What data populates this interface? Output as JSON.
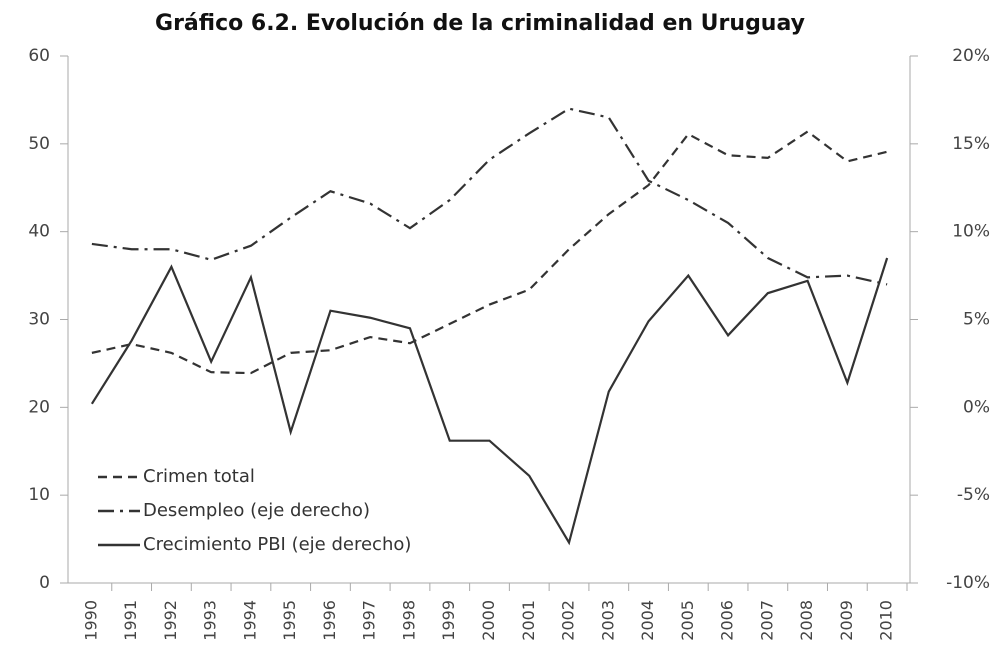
{
  "chart_data": {
    "type": "line",
    "title": "Gráfico 6.2. Evolución de la criminalidad en Uruguay",
    "categories": [
      "1990",
      "1991",
      "1992",
      "1993",
      "1994",
      "1995",
      "1996",
      "1997",
      "1998",
      "1999",
      "2000",
      "2001",
      "2002",
      "2003",
      "2004",
      "2005",
      "2006",
      "2007",
      "2008",
      "2009",
      "2010"
    ],
    "series": [
      {
        "name": "Crimen total",
        "color": "#333333",
        "dash": "dashed",
        "axis": "y",
        "values": [
          26.2,
          27.2,
          26.2,
          24,
          23.9,
          26.2,
          26.5,
          28,
          27.3,
          29.5,
          31.7,
          33.4,
          38,
          42,
          45.3,
          51.1,
          48.7,
          48.4,
          51.4,
          48,
          49.1
        ]
      },
      {
        "name": "Desempleo (eje derecho)",
        "color": "#333333",
        "dash": "dashdot",
        "axis": "y2",
        "values": [
          9.3,
          9.0,
          9.0,
          8.4,
          9.2,
          10.8,
          12.3,
          11.6,
          10.2,
          11.8,
          14.1,
          15.6,
          17.0,
          16.5,
          12.9,
          11.8,
          10.5,
          8.5,
          7.4,
          7.5,
          7.0
        ]
      },
      {
        "name": "Crecimiento PBI (eje derecho)",
        "color": "#333333",
        "dash": "solid",
        "axis": "y2",
        "values": [
          0.2,
          3.8,
          8.0,
          2.6,
          7.4,
          -1.4,
          5.5,
          5.1,
          4.5,
          -1.9,
          -1.9,
          -3.9,
          -7.7,
          0.9,
          4.9,
          7.5,
          4.1,
          6.5,
          7.2,
          1.4,
          8.5
        ]
      }
    ],
    "ylim": [
      0,
      60
    ],
    "yticks": [
      0,
      10,
      20,
      30,
      40,
      50,
      60
    ],
    "y2lim": [
      -10,
      20
    ],
    "y2ticks": [
      {
        "value": -10,
        "label": "-10%"
      },
      {
        "value": -5,
        "label": "-5%"
      },
      {
        "value": 0,
        "label": "0%"
      },
      {
        "value": 5,
        "label": "5%"
      },
      {
        "value": 10,
        "label": "10%"
      },
      {
        "value": 15,
        "label": "15%"
      },
      {
        "value": 20,
        "label": "20%"
      }
    ],
    "legend": "lower-left"
  }
}
